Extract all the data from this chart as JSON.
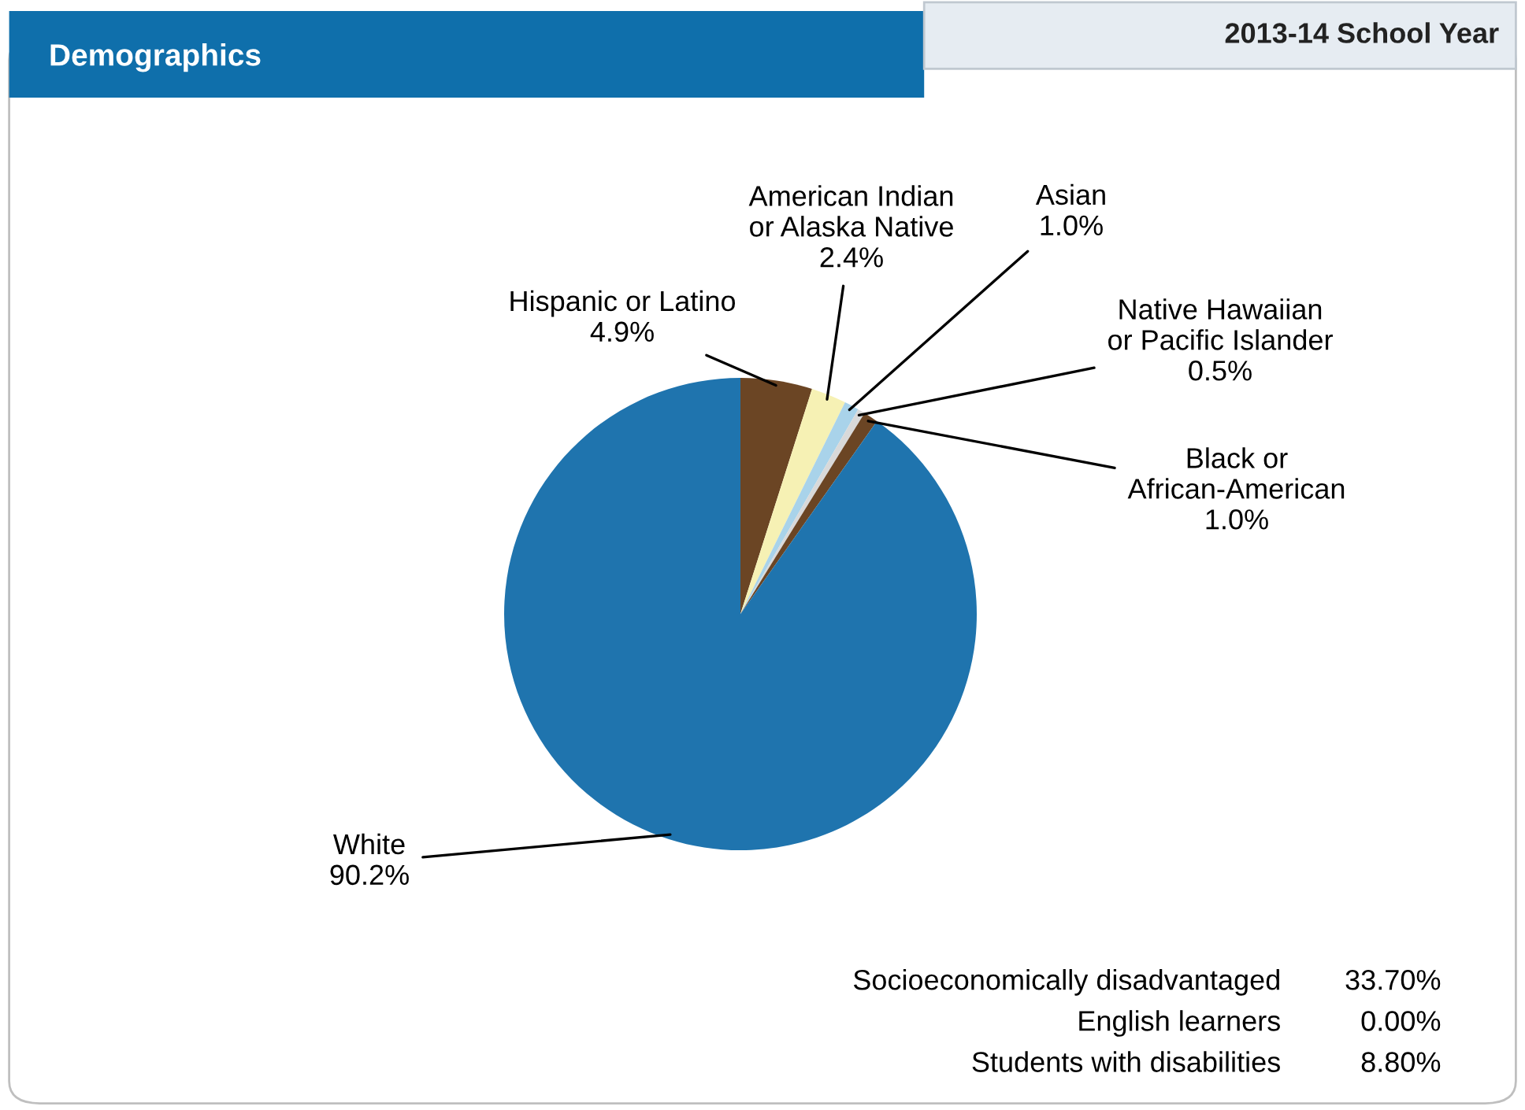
{
  "chart_data": {
    "type": "pie",
    "title": "Demographics",
    "subtitle": "2013-14 School Year",
    "categories": [
      "Hispanic or Latino",
      "American Indian\nor Alaska Native",
      "Asian",
      "Native Hawaiian\nor Pacific Islander",
      "Black or\nAfrican-American",
      "White"
    ],
    "values": [
      4.9,
      2.4,
      1.0,
      0.5,
      1.0,
      90.2
    ],
    "value_labels": [
      "4.9%",
      "2.4%",
      "1.0%",
      "0.5%",
      "1.0%",
      "90.2%"
    ],
    "colors": [
      "#6b4524",
      "#f6f1b4",
      "#a9d3ea",
      "#d9d9d9",
      "#6b4524",
      "#1f74ae"
    ],
    "annotations": [
      "Socioeconomically disadvantaged\t33.70%",
      "English learners\t0.00%",
      "Students with disabilities\t8.80%"
    ]
  }
}
